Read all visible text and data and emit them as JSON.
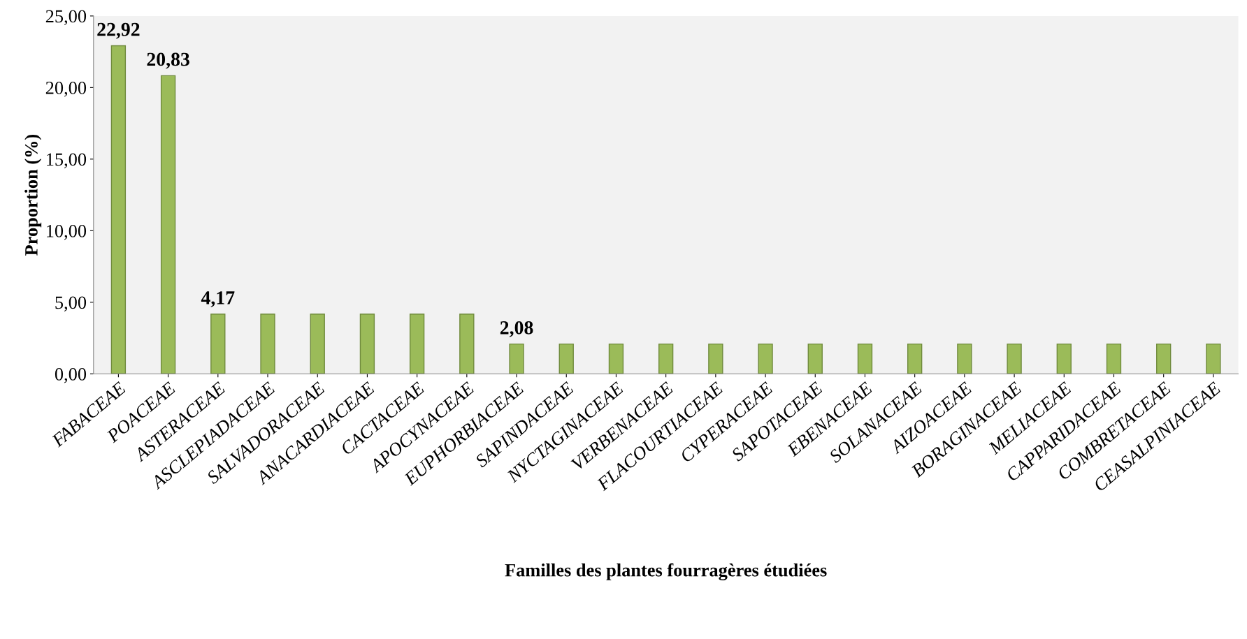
{
  "chart_data": {
    "type": "bar",
    "xlabel": "Familles des plantes fourragères étudiées",
    "ylabel": "Proportion (%)",
    "categories": [
      "FABACEAE",
      "POACEAE",
      "ASTERACEAE",
      "ASCLEPIADACEAE",
      "SALVADORACEAE",
      "ANACARDIACEAE",
      "CACTACEAE",
      "APOCYNACEAE",
      "EUPHORBIACEAE",
      "SAPINDACEAE",
      "NYCTAGINACEAE",
      "VERBENACEAE",
      "FLACOURTIACEAE",
      "CYPERACEAE",
      "SAPOTACEAE",
      "EBENACEAE",
      "SOLANACEAE",
      "AIZOACEAE",
      "BORAGINACEAE",
      "MELIACEAE",
      "CAPPARIDACEAE",
      "COMBRETACEAE",
      "CEASALPINIACEAE"
    ],
    "values": [
      22.92,
      20.83,
      4.17,
      4.17,
      4.17,
      4.17,
      4.17,
      4.17,
      2.08,
      2.08,
      2.08,
      2.08,
      2.08,
      2.08,
      2.08,
      2.08,
      2.08,
      2.08,
      2.08,
      2.08,
      2.08,
      2.08,
      2.08
    ],
    "value_labels": [
      "22,92",
      "20,83",
      "4,17",
      null,
      null,
      null,
      null,
      null,
      "2,08",
      null,
      null,
      null,
      null,
      null,
      null,
      null,
      null,
      null,
      null,
      null,
      null,
      null,
      null
    ],
    "color": "#9bbb59",
    "ylim": [
      0,
      25
    ],
    "yticks": [
      {
        "value": 0,
        "label": "0,00"
      },
      {
        "value": 5,
        "label": "5,00"
      },
      {
        "value": 10,
        "label": "10,00"
      },
      {
        "value": 15,
        "label": "15,00"
      },
      {
        "value": 20,
        "label": "20,00"
      },
      {
        "value": 25,
        "label": "25,00"
      }
    ],
    "grid": false,
    "legend": false
  }
}
